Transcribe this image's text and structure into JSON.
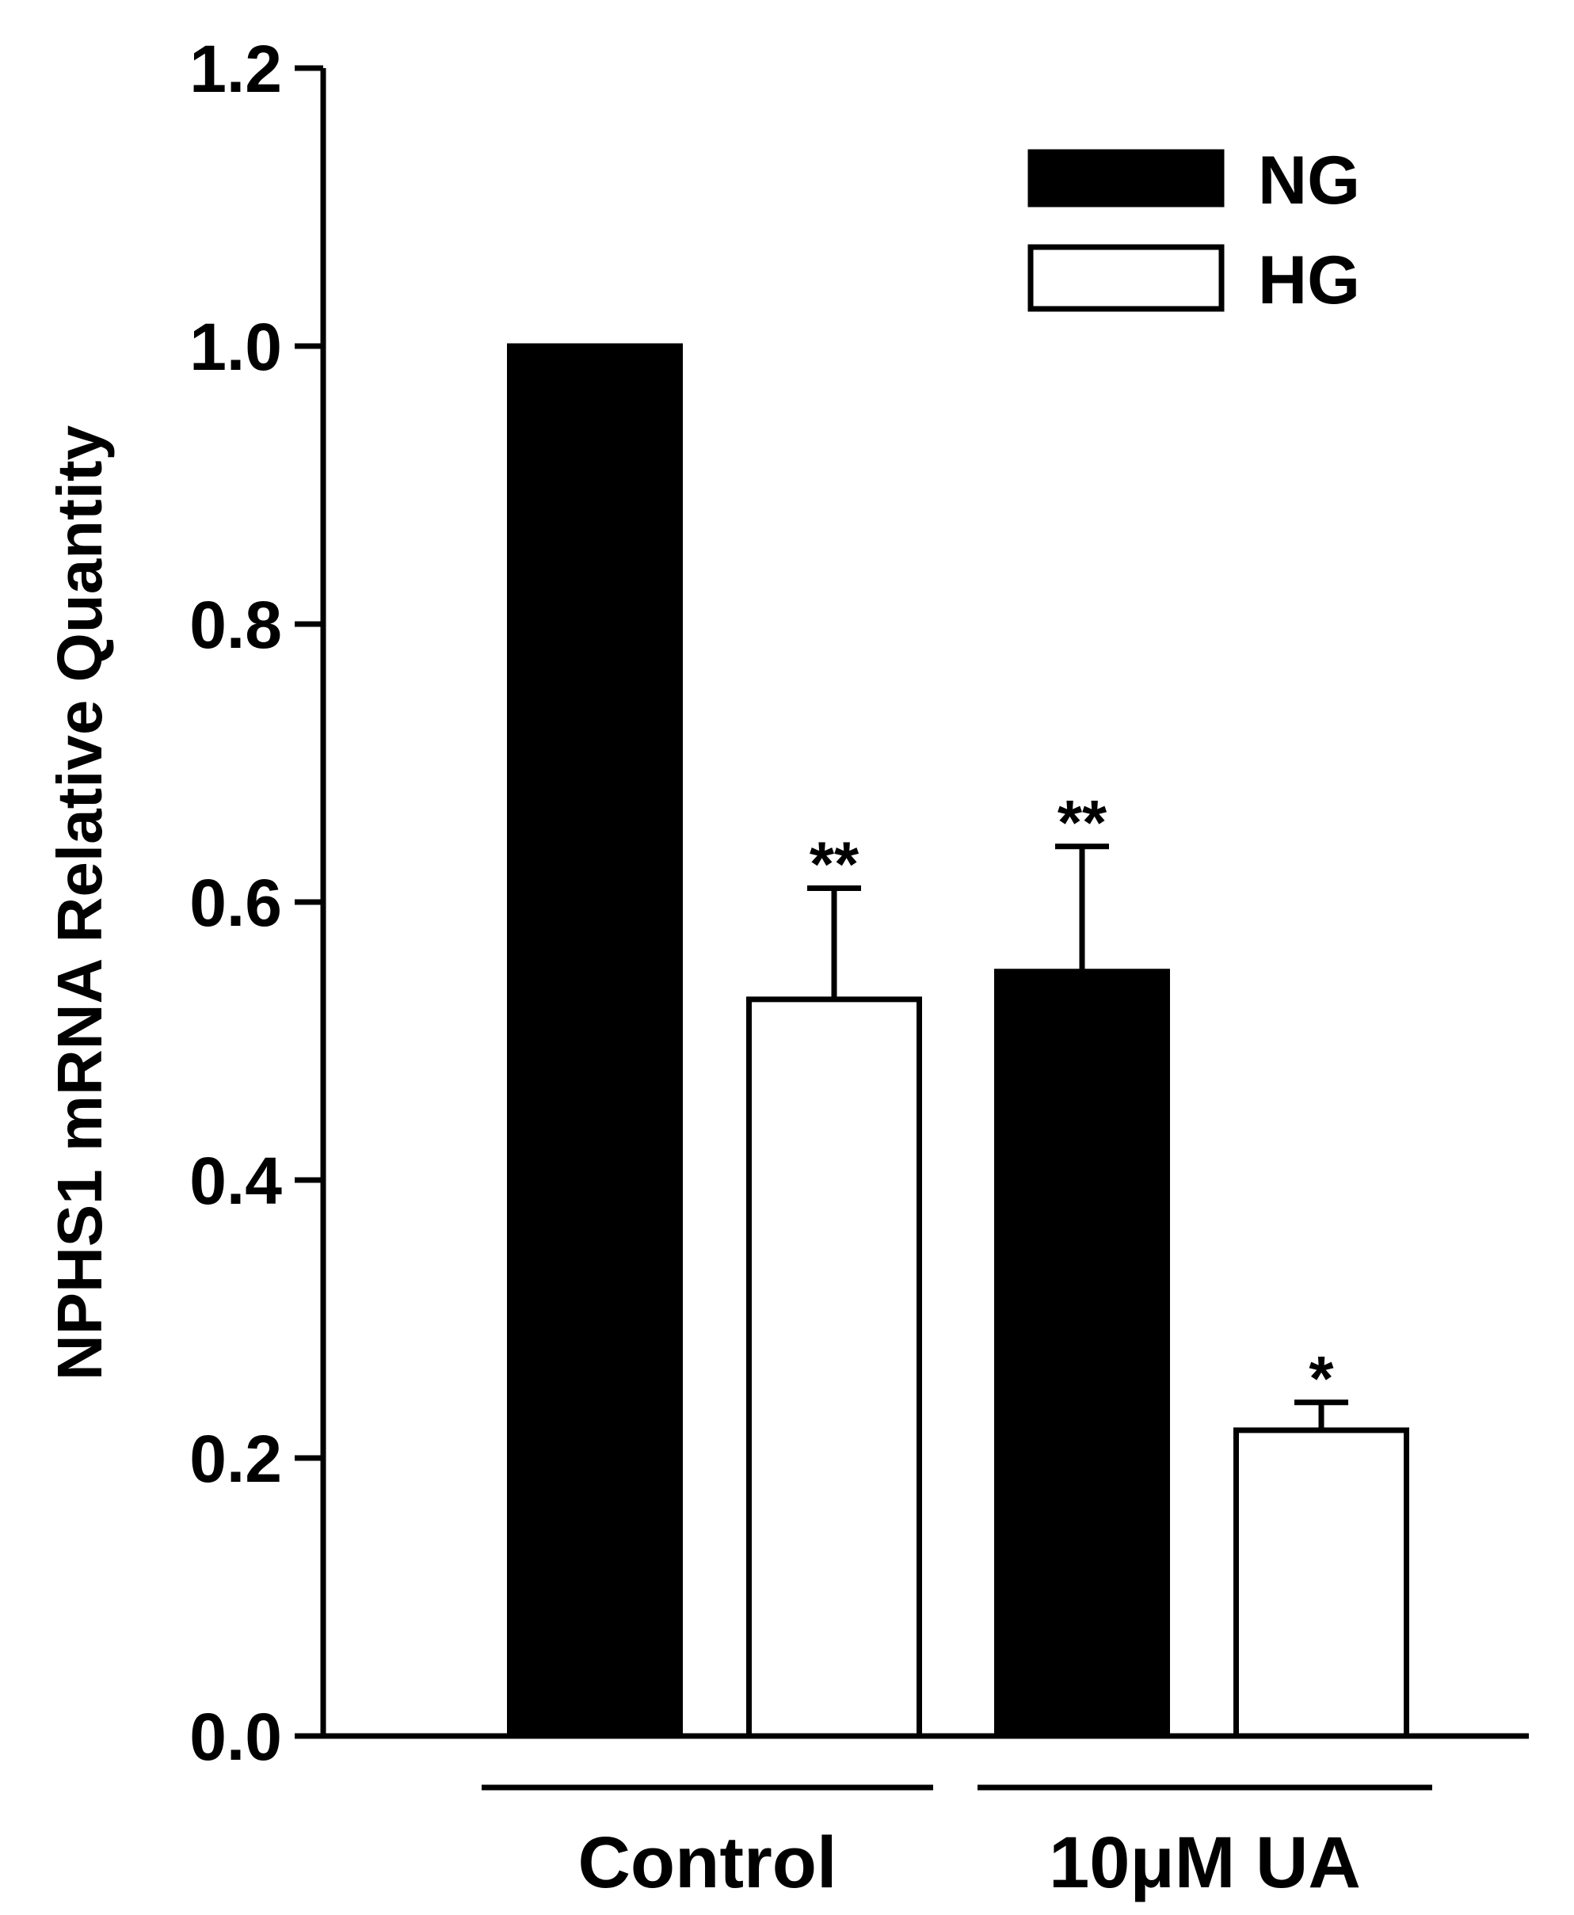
{
  "chart_data": {
    "type": "bar",
    "title": "",
    "xlabel": "",
    "ylabel": "NPHS1 mRNA Relative Quantity",
    "ylim": [
      0,
      1.2
    ],
    "yticks": [
      "0.0",
      "0.2",
      "0.4",
      "0.6",
      "0.8",
      "1.0",
      "1.2"
    ],
    "grid": false,
    "legend_position": "top-right",
    "categories": [
      "Control",
      "10μM UA"
    ],
    "series": [
      {
        "name": "NG",
        "color": "#000000",
        "fill": "solid",
        "values": [
          1.0,
          0.55
        ],
        "errors": [
          0,
          0.09
        ],
        "significance": [
          "",
          "**"
        ]
      },
      {
        "name": "HG",
        "color": "#ffffff",
        "fill": "open",
        "values": [
          0.53,
          0.22
        ],
        "errors": [
          0.08,
          0.02
        ],
        "significance": [
          "**",
          "*"
        ]
      }
    ]
  }
}
